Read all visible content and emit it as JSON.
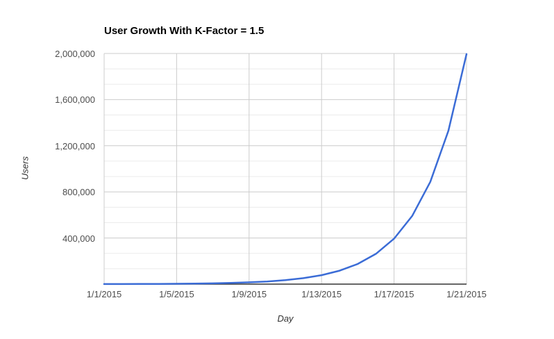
{
  "chart_data": {
    "type": "line",
    "title": "User Growth With K-Factor = 1.5",
    "xlabel": "Day",
    "ylabel": "Users",
    "x": [
      "1/1/2015",
      "1/2/2015",
      "1/3/2015",
      "1/4/2015",
      "1/5/2015",
      "1/6/2015",
      "1/7/2015",
      "1/8/2015",
      "1/9/2015",
      "1/10/2015",
      "1/11/2015",
      "1/12/2015",
      "1/13/2015",
      "1/14/2015",
      "1/15/2015",
      "1/16/2015",
      "1/17/2015",
      "1/18/2015",
      "1/19/2015",
      "1/20/2015",
      "1/21/2015"
    ],
    "values": [
      600,
      900,
      1350,
      2025,
      3038,
      4556,
      6834,
      10252,
      15377,
      23066,
      34599,
      51899,
      77848,
      116772,
      175158,
      262737,
      394106,
      591159,
      886738,
      1330107,
      1995161
    ],
    "x_tick_labels": [
      "1/1/2015",
      "1/5/2015",
      "1/9/2015",
      "1/13/2015",
      "1/17/2015",
      "1/21/2015"
    ],
    "y_ticks": [
      {
        "value": 400000,
        "label": "400,000"
      },
      {
        "value": 800000,
        "label": "800,000"
      },
      {
        "value": 1200000,
        "label": "1,200,000"
      },
      {
        "value": 1600000,
        "label": "1,600,000"
      },
      {
        "value": 2000000,
        "label": "2,000,000"
      }
    ],
    "ylim": [
      0,
      2000000
    ],
    "y_major_step": 400000,
    "y_minor_divisions": 3,
    "grid": true,
    "legend_position": "none",
    "colors": {
      "line": "#3b6cd6",
      "axis": "#333333",
      "major_grid": "#cccccc",
      "minor_grid": "#ebebeb",
      "tick_label": "#4d4d4d",
      "title": "#000000"
    }
  }
}
